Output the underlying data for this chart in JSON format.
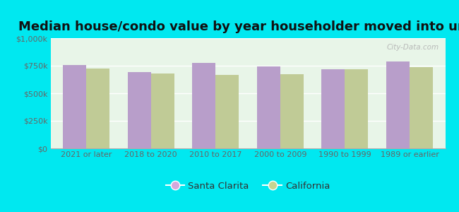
{
  "title": "Median house/condo value by year householder moved into unit",
  "categories": [
    "2021 or later",
    "2018 to 2020",
    "2010 to 2017",
    "2000 to 2009",
    "1990 to 1999",
    "1989 or earlier"
  ],
  "santa_clarita": [
    755000,
    690000,
    775000,
    745000,
    715000,
    790000
  ],
  "california": [
    725000,
    680000,
    665000,
    675000,
    720000,
    740000
  ],
  "bar_color_sc": "#b89eca",
  "bar_color_ca": "#c0cb96",
  "background_outer": "#00e8f0",
  "background_inner_top": "#e8f5e8",
  "background_inner_bot": "#d8ecd8",
  "ylim": [
    0,
    1000000
  ],
  "yticks": [
    0,
    250000,
    500000,
    750000,
    1000000
  ],
  "ytick_labels": [
    "$0",
    "$250k",
    "$500k",
    "$750k",
    "$1,000k"
  ],
  "legend_sc": "Santa Clarita",
  "legend_ca": "California",
  "watermark": "City-Data.com",
  "title_fontsize": 13,
  "tick_fontsize": 8,
  "legend_fontsize": 9.5,
  "legend_marker_sc": "#d4a8dc",
  "legend_marker_ca": "#c8d490"
}
